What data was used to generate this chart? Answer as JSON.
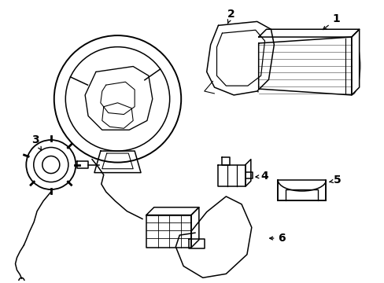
{
  "background_color": "#ffffff",
  "line_color": "#000000",
  "line_width": 1.1,
  "figsize": [
    4.89,
    3.6
  ],
  "dpi": 100
}
